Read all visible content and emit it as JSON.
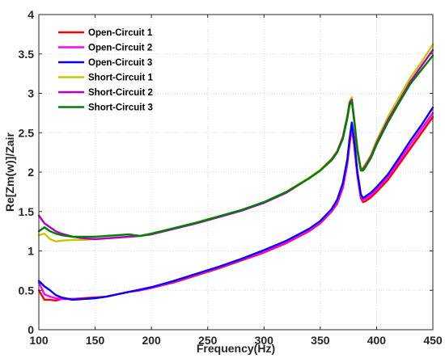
{
  "chart_data": {
    "type": "line",
    "title": "",
    "xlabel": "Frequency(Hz)",
    "ylabel": "Re[Zm(w)]/Zair",
    "xlim": [
      100,
      450
    ],
    "ylim": [
      0,
      4
    ],
    "xticks": [
      100,
      150,
      200,
      250,
      300,
      350,
      400,
      450
    ],
    "yticks": [
      0,
      0.5,
      1,
      1.5,
      2,
      2.5,
      3,
      3.5,
      4
    ],
    "grid": true,
    "legend_position": "top-left",
    "x": [
      100,
      105,
      110,
      115,
      120,
      130,
      140,
      150,
      160,
      170,
      180,
      190,
      200,
      220,
      240,
      260,
      280,
      300,
      320,
      340,
      350,
      360,
      365,
      370,
      374,
      376,
      378,
      380,
      383,
      386,
      388,
      390,
      395,
      400,
      410,
      420,
      430,
      440,
      450
    ],
    "series": [
      {
        "name": "Open-Circuit 1",
        "color": "#ff0000",
        "values": [
          0.5,
          0.38,
          0.38,
          0.37,
          0.39,
          0.39,
          0.4,
          0.41,
          0.42,
          0.45,
          0.48,
          0.5,
          0.53,
          0.6,
          0.69,
          0.78,
          0.88,
          0.98,
          1.1,
          1.25,
          1.35,
          1.5,
          1.6,
          1.8,
          2.1,
          2.35,
          2.55,
          2.35,
          1.95,
          1.67,
          1.62,
          1.63,
          1.68,
          1.75,
          1.9,
          2.1,
          2.3,
          2.5,
          2.7
        ]
      },
      {
        "name": "Open-Circuit 2",
        "color": "#ff00ff",
        "values": [
          0.6,
          0.45,
          0.42,
          0.4,
          0.39,
          0.39,
          0.39,
          0.4,
          0.42,
          0.45,
          0.48,
          0.5,
          0.53,
          0.61,
          0.7,
          0.79,
          0.89,
          0.99,
          1.11,
          1.26,
          1.36,
          1.51,
          1.62,
          1.82,
          2.12,
          2.38,
          2.58,
          2.38,
          1.97,
          1.69,
          1.65,
          1.66,
          1.71,
          1.78,
          1.94,
          2.14,
          2.35,
          2.55,
          2.75
        ]
      },
      {
        "name": "Open-Circuit 3",
        "color": "#0000ff",
        "values": [
          0.62,
          0.55,
          0.5,
          0.44,
          0.41,
          0.38,
          0.39,
          0.4,
          0.42,
          0.45,
          0.48,
          0.51,
          0.54,
          0.62,
          0.71,
          0.8,
          0.9,
          1.01,
          1.13,
          1.28,
          1.38,
          1.53,
          1.65,
          1.86,
          2.16,
          2.42,
          2.63,
          2.42,
          2.0,
          1.72,
          1.67,
          1.69,
          1.74,
          1.81,
          1.97,
          2.18,
          2.4,
          2.6,
          2.82
        ]
      },
      {
        "name": "Short-Circuit 1",
        "color": "#c8c800",
        "values": [
          1.2,
          1.22,
          1.15,
          1.12,
          1.13,
          1.14,
          1.14,
          1.15,
          1.16,
          1.17,
          1.18,
          1.19,
          1.21,
          1.28,
          1.35,
          1.43,
          1.51,
          1.62,
          1.75,
          1.93,
          2.03,
          2.17,
          2.27,
          2.45,
          2.72,
          2.9,
          2.95,
          2.7,
          2.3,
          2.05,
          2.06,
          2.1,
          2.22,
          2.4,
          2.7,
          2.95,
          3.2,
          3.4,
          3.62
        ]
      },
      {
        "name": "Short-Circuit 2",
        "color": "#b000c8",
        "values": [
          1.45,
          1.35,
          1.3,
          1.25,
          1.22,
          1.18,
          1.16,
          1.15,
          1.16,
          1.17,
          1.18,
          1.19,
          1.21,
          1.28,
          1.35,
          1.43,
          1.51,
          1.61,
          1.74,
          1.92,
          2.02,
          2.16,
          2.26,
          2.44,
          2.7,
          2.88,
          2.92,
          2.68,
          2.28,
          2.03,
          2.04,
          2.08,
          2.2,
          2.37,
          2.66,
          2.9,
          3.15,
          3.35,
          3.55
        ]
      },
      {
        "name": "Short-Circuit 3",
        "color": "#008000",
        "values": [
          1.25,
          1.3,
          1.25,
          1.22,
          1.2,
          1.18,
          1.18,
          1.18,
          1.19,
          1.2,
          1.21,
          1.19,
          1.22,
          1.29,
          1.36,
          1.44,
          1.52,
          1.62,
          1.75,
          1.92,
          2.02,
          2.15,
          2.25,
          2.42,
          2.68,
          2.85,
          2.9,
          2.66,
          2.26,
          2.02,
          2.02,
          2.06,
          2.18,
          2.35,
          2.63,
          2.88,
          3.12,
          3.3,
          3.48
        ]
      }
    ]
  }
}
